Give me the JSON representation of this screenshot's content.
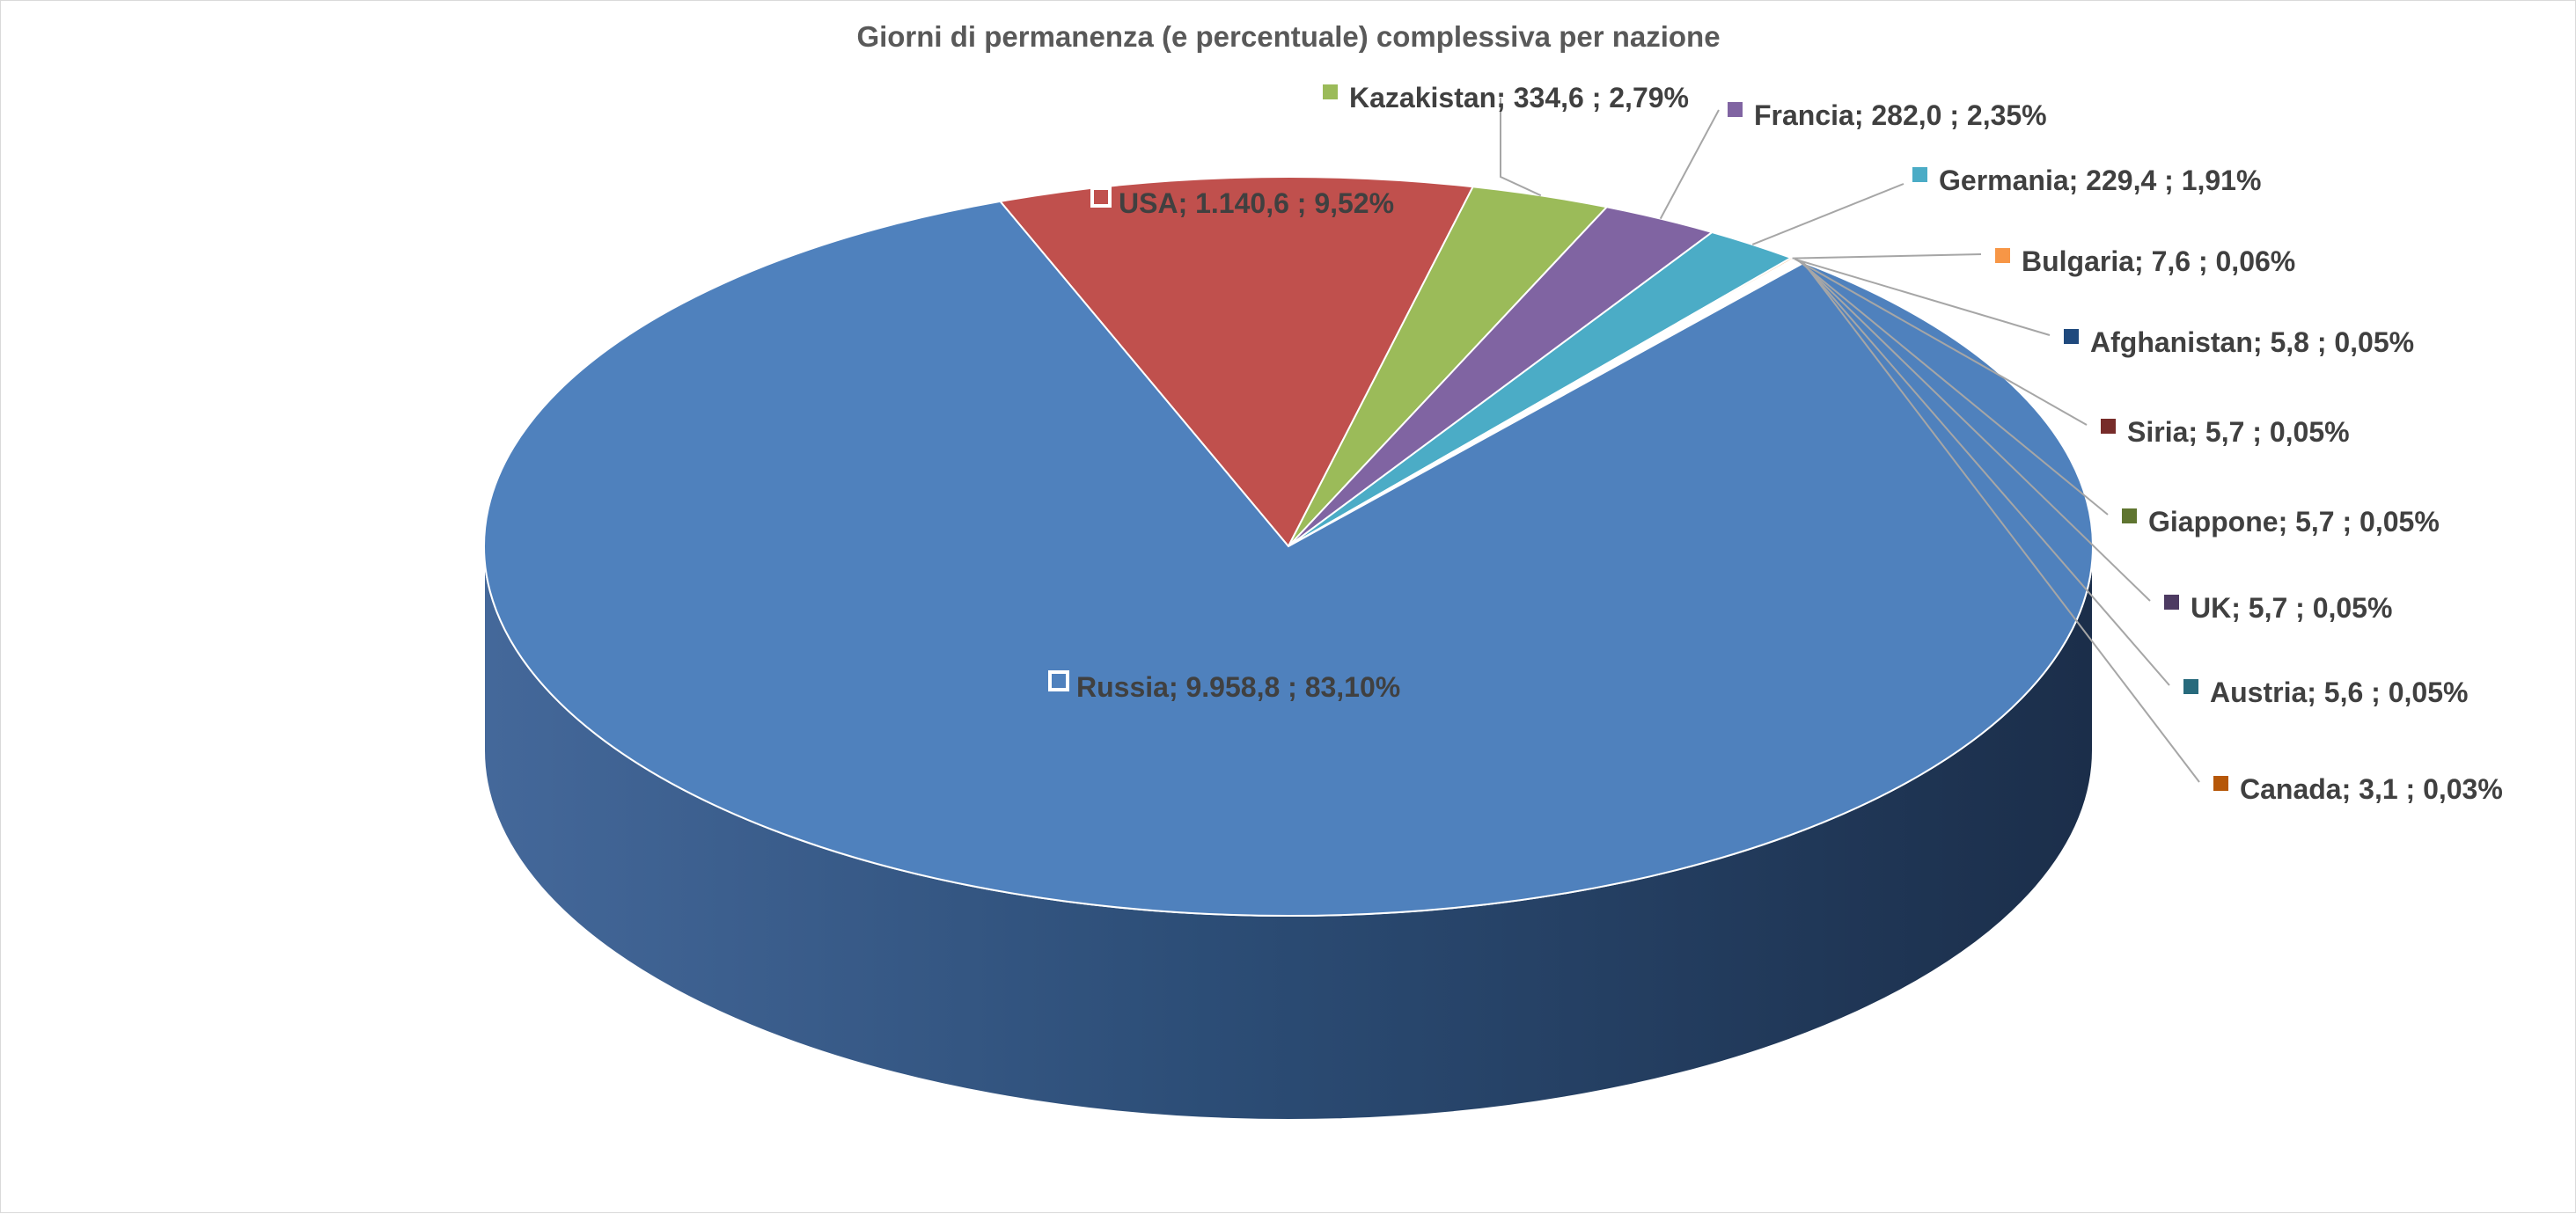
{
  "chart_data": {
    "type": "pie",
    "title": "Giorni di permanenza (e percentuale) complessiva per nazione",
    "slices": [
      {
        "name": "USA",
        "value_label": "1.140,6",
        "percent_label": "9,52%",
        "value": 1140.6,
        "percent": 9.52,
        "color": "#c0504d"
      },
      {
        "name": "Kazakistan",
        "value_label": "334,6",
        "percent_label": "2,79%",
        "value": 334.6,
        "percent": 2.79,
        "color": "#9bbb59"
      },
      {
        "name": "Francia",
        "value_label": "282,0",
        "percent_label": "2,35%",
        "value": 282.0,
        "percent": 2.35,
        "color": "#8064a2"
      },
      {
        "name": "Germania",
        "value_label": "229,4",
        "percent_label": "1,91%",
        "value": 229.4,
        "percent": 1.91,
        "color": "#4bacc6"
      },
      {
        "name": "Bulgaria",
        "value_label": "7,6",
        "percent_label": "0,06%",
        "value": 7.6,
        "percent": 0.06,
        "color": "#f79646"
      },
      {
        "name": "Afghanistan",
        "value_label": "5,8",
        "percent_label": "0,05%",
        "value": 5.8,
        "percent": 0.05,
        "color": "#1f497d"
      },
      {
        "name": "Siria",
        "value_label": "5,7",
        "percent_label": "0,05%",
        "value": 5.7,
        "percent": 0.05,
        "color": "#772c2a"
      },
      {
        "name": "Giappone",
        "value_label": "5,7",
        "percent_label": "0,05%",
        "value": 5.7,
        "percent": 0.05,
        "color": "#5f7530"
      },
      {
        "name": "UK",
        "value_label": "5,7",
        "percent_label": "0,05%",
        "value": 5.7,
        "percent": 0.05,
        "color": "#4d3b62"
      },
      {
        "name": "Austria",
        "value_label": "5,6",
        "percent_label": "0,05%",
        "value": 5.6,
        "percent": 0.05,
        "color": "#276a7c"
      },
      {
        "name": "Canada",
        "value_label": "3,1",
        "percent_label": "0,03%",
        "value": 3.1,
        "percent": 0.03,
        "color": "#b65708"
      },
      {
        "name": "Russia",
        "value_label": "9.958,8",
        "percent_label": "83,10%",
        "value": 9958.8,
        "percent": 83.1,
        "color": "#4f81bd"
      }
    ],
    "legend": "none",
    "data_labels": "category; value; percentage"
  }
}
